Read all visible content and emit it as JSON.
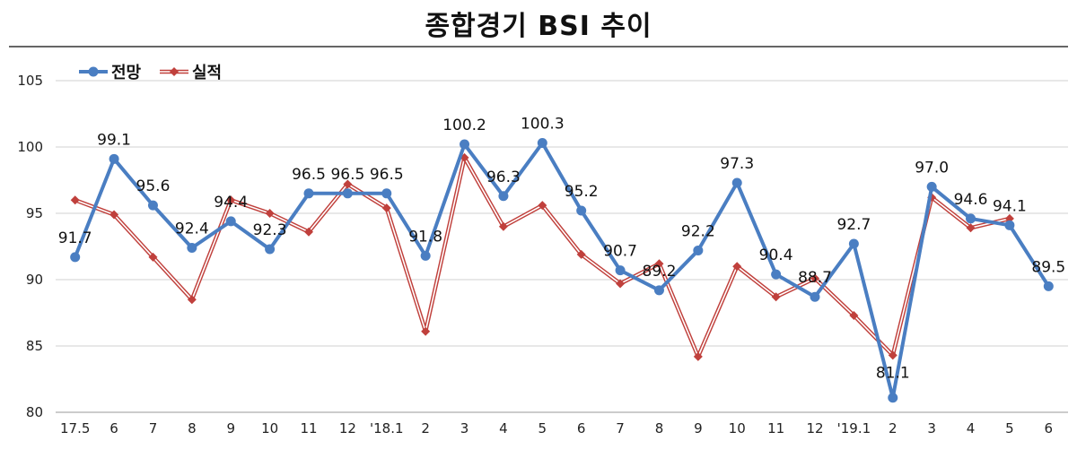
{
  "chart_data": {
    "type": "line",
    "title": "종합경기 BSI 추이",
    "categories": [
      "17.5",
      "6",
      "7",
      "8",
      "9",
      "10",
      "11",
      "12",
      "'18.1",
      "2",
      "3",
      "4",
      "5",
      "6",
      "7",
      "8",
      "9",
      "10",
      "11",
      "12",
      "'19.1",
      "2",
      "3",
      "4",
      "5",
      "6"
    ],
    "ylim": [
      80,
      105
    ],
    "yticks": [
      80,
      85,
      90,
      95,
      100,
      105
    ],
    "grid": true,
    "legend_position": "top-left",
    "series": [
      {
        "name": "전망",
        "color": "#4a7ec2",
        "marker": "circle",
        "values": [
          91.7,
          99.1,
          95.6,
          92.4,
          94.4,
          92.3,
          96.5,
          96.5,
          96.5,
          91.8,
          100.2,
          96.3,
          100.3,
          95.2,
          90.7,
          89.2,
          92.2,
          97.3,
          90.4,
          88.7,
          92.7,
          81.1,
          97.0,
          94.6,
          94.1,
          89.5
        ],
        "labels": [
          "91.7",
          "99.1",
          "95.6",
          "92.4",
          "94.4",
          "92.3",
          "96.5",
          "96.5",
          "96.5",
          "91.8",
          "100.2",
          "96.3",
          "100.3",
          "95.2",
          "90.7",
          "89.2",
          "92.2",
          "97.3",
          "90.4",
          "88.7",
          "92.7",
          "81.1",
          "97.0",
          "94.6",
          "94.1",
          "89.5"
        ]
      },
      {
        "name": "실적",
        "color": "#c0403c",
        "marker": "diamond",
        "values": [
          96.0,
          94.9,
          91.7,
          88.5,
          96.0,
          95.0,
          93.6,
          97.2,
          95.4,
          86.1,
          99.2,
          94.0,
          95.6,
          91.9,
          89.7,
          91.2,
          84.2,
          91.0,
          88.7,
          90.1,
          87.3,
          84.3,
          96.2,
          93.9,
          94.6,
          null
        ]
      }
    ]
  }
}
